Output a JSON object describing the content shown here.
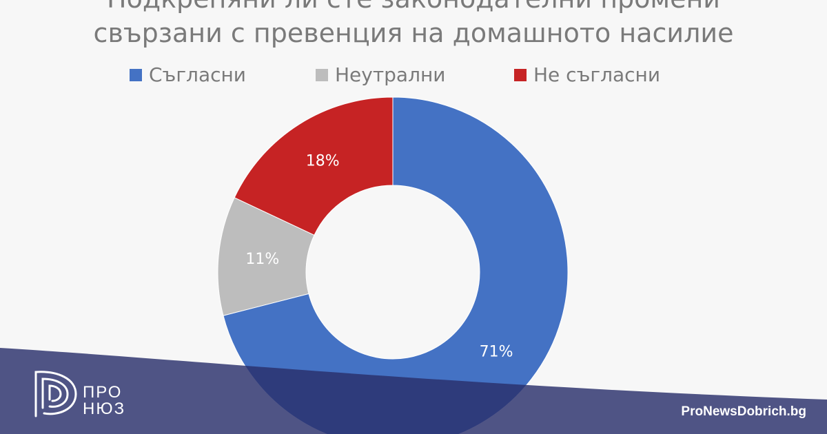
{
  "chart_data": {
    "type": "pie",
    "variant": "donut",
    "title_line1": "Подкрепяни ли сте законодателни промени",
    "title_line2": "свързани с превенция на домашното насилие",
    "legend_position": "top",
    "series": [
      {
        "name": "Съгласни",
        "value": 71,
        "label": "71%",
        "color": "#4472c4"
      },
      {
        "name": "Неутрални",
        "value": 11,
        "label": "11%",
        "color": "#bdbdbd"
      },
      {
        "name": "Не съгласни",
        "value": 18,
        "label": "18%",
        "color": "#c62324"
      }
    ]
  },
  "footer": {
    "logo_line1": "ПРО",
    "logo_line2": "НЮЗ",
    "site": "ProNewsDobrich.bg",
    "band_color": "#2a2f6b"
  }
}
